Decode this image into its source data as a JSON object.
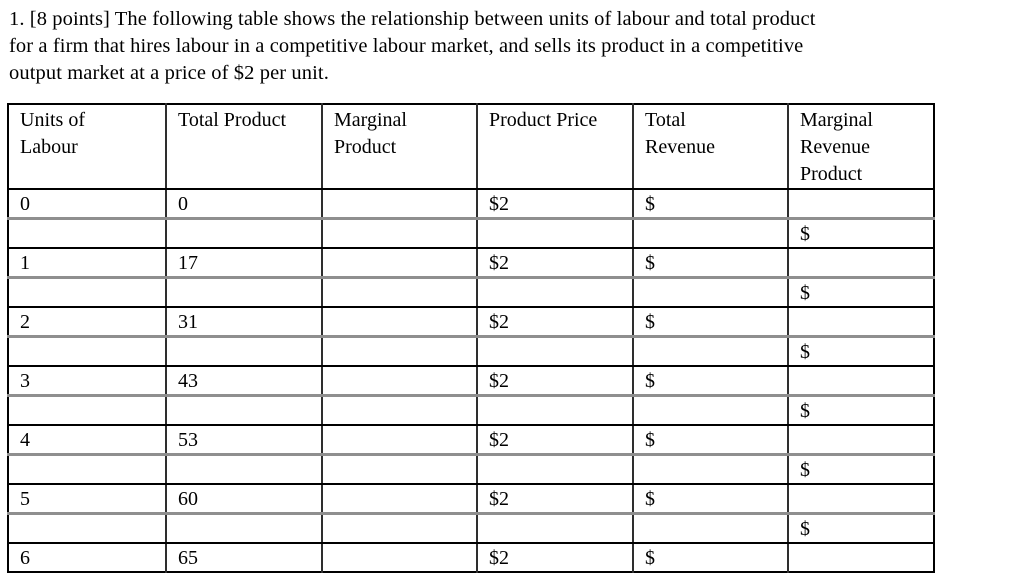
{
  "intro": {
    "lines": [
      "1. [8 points] The following table shows the relationship between units of labour and total product",
      "for a firm that hires labour in a competitive labour market, and sells its product in a competitive",
      "output market at a price of $2 per unit."
    ]
  },
  "table": {
    "headers": [
      "Units of\nLabour",
      "Total Product",
      "Marginal\nProduct",
      "Product Price",
      "Total\nRevenue",
      "Marginal\nRevenue\nProduct"
    ],
    "rows": [
      {
        "type": "main",
        "cells": [
          "0",
          "0",
          "",
          "$2",
          "$",
          ""
        ]
      },
      {
        "type": "spacer",
        "cells": [
          "",
          "",
          "",
          "",
          "",
          "$"
        ]
      },
      {
        "type": "main",
        "cells": [
          "1",
          "17",
          "",
          "$2",
          "$",
          ""
        ]
      },
      {
        "type": "spacer",
        "cells": [
          "",
          "",
          "",
          "",
          "",
          "$"
        ]
      },
      {
        "type": "main",
        "cells": [
          "2",
          "31",
          "",
          "$2",
          "$",
          ""
        ]
      },
      {
        "type": "spacer",
        "cells": [
          "",
          "",
          "",
          "",
          "",
          "$"
        ]
      },
      {
        "type": "main",
        "cells": [
          "3",
          "43",
          "",
          "$2",
          "$",
          ""
        ]
      },
      {
        "type": "spacer",
        "cells": [
          "",
          "",
          "",
          "",
          "",
          "$"
        ]
      },
      {
        "type": "main",
        "cells": [
          "4",
          "53",
          "",
          "$2",
          "$",
          ""
        ]
      },
      {
        "type": "spacer",
        "cells": [
          "",
          "",
          "",
          "",
          "",
          "$"
        ]
      },
      {
        "type": "main",
        "cells": [
          "5",
          "60",
          "",
          "$2",
          "$",
          ""
        ]
      },
      {
        "type": "spacer",
        "cells": [
          "",
          "",
          "",
          "",
          "",
          "$"
        ]
      },
      {
        "type": "main",
        "cells": [
          "6",
          "65",
          "",
          "$2",
          "$",
          ""
        ]
      }
    ],
    "product_price_per_unit": "$2",
    "border_colors": {
      "outer": "#000000",
      "vertical": "#2e2e2e",
      "main_row_rule": "#8f8f8f",
      "spacer_row_rule": "#000000"
    }
  }
}
